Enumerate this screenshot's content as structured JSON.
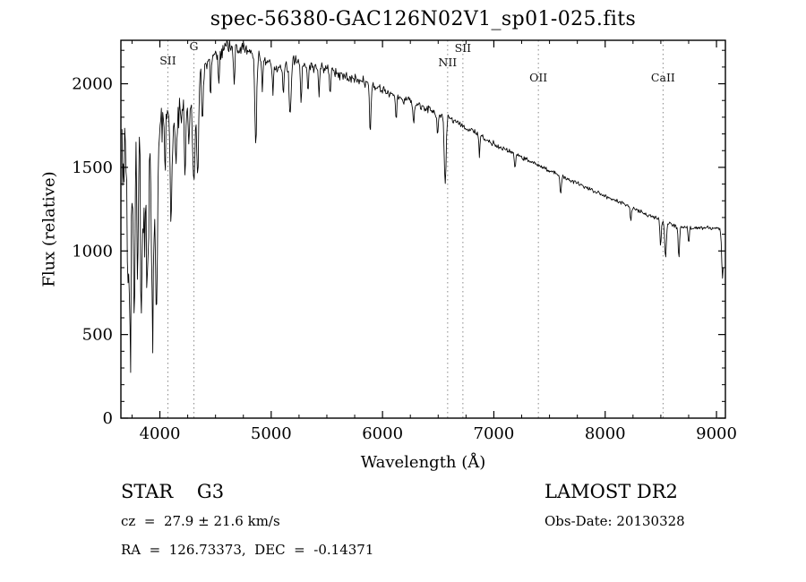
{
  "window": {
    "background": "#ffffff"
  },
  "chart_data": {
    "type": "line",
    "title": "spec-56380-GAC126N02V1_sp01-025.fits",
    "xlabel": "Wavelength (Å)",
    "ylabel": "Flux (relative)",
    "xlim": [
      3650,
      9080
    ],
    "ylim": [
      0,
      2260
    ],
    "x_ticks": [
      4000,
      5000,
      6000,
      7000,
      8000,
      9000
    ],
    "y_ticks": [
      0,
      500,
      1000,
      1500,
      2000
    ],
    "x_minor_step": 250,
    "y_minor_step": 100,
    "grid": false,
    "legend": "none",
    "line_color": "#000000",
    "marker_line_color": "#888888",
    "marker_lines": [
      {
        "label": "SII",
        "wavelength": 4072,
        "label_offset": 27
      },
      {
        "label": "G",
        "wavelength": 4306,
        "label_offset": 11
      },
      {
        "label": "NII",
        "wavelength": 6585,
        "label_offset": 29
      },
      {
        "label": "SII",
        "wavelength": 6722,
        "label_offset": 13
      },
      {
        "label": "OII",
        "wavelength": 7400,
        "label_offset": 46
      },
      {
        "label": "CaII",
        "wavelength": 8520,
        "label_offset": 46
      }
    ],
    "spectrum": {
      "domain": [
        3660,
        9060
      ],
      "step": 6,
      "noise_seed": 20130328,
      "continuum": [
        [
          3660,
          1450
        ],
        [
          3700,
          1500
        ],
        [
          3740,
          1380
        ],
        [
          3780,
          1520
        ],
        [
          3820,
          1460
        ],
        [
          3860,
          1560
        ],
        [
          3900,
          1500
        ],
        [
          3940,
          1460
        ],
        [
          3980,
          1620
        ],
        [
          4000,
          1700
        ],
        [
          4040,
          1780
        ],
        [
          4080,
          1800
        ],
        [
          4120,
          1760
        ],
        [
          4160,
          1820
        ],
        [
          4200,
          1850
        ],
        [
          4240,
          1880
        ],
        [
          4280,
          1900
        ],
        [
          4320,
          1950
        ],
        [
          4360,
          2060
        ],
        [
          4400,
          2100
        ],
        [
          4450,
          2150
        ],
        [
          4500,
          2180
        ],
        [
          4550,
          2200
        ],
        [
          4600,
          2220
        ],
        [
          4650,
          2230
        ],
        [
          4700,
          2220
        ],
        [
          4750,
          2230
        ],
        [
          4800,
          2200
        ],
        [
          4850,
          2150
        ],
        [
          4900,
          2160
        ],
        [
          4950,
          2140
        ],
        [
          5000,
          2130
        ],
        [
          5050,
          2100
        ],
        [
          5100,
          2090
        ],
        [
          5150,
          2110
        ],
        [
          5200,
          2140
        ],
        [
          5250,
          2130
        ],
        [
          5300,
          2120
        ],
        [
          5350,
          2110
        ],
        [
          5400,
          2100
        ],
        [
          5450,
          2090
        ],
        [
          5500,
          2080
        ],
        [
          5550,
          2070
        ],
        [
          5600,
          2060
        ],
        [
          5650,
          2050
        ],
        [
          5700,
          2040
        ],
        [
          5750,
          2030
        ],
        [
          5800,
          2020
        ],
        [
          5850,
          2010
        ],
        [
          5900,
          1990
        ],
        [
          5950,
          1975
        ],
        [
          6000,
          1960
        ],
        [
          6100,
          1930
        ],
        [
          6200,
          1905
        ],
        [
          6300,
          1880
        ],
        [
          6400,
          1850
        ],
        [
          6500,
          1820
        ],
        [
          6600,
          1790
        ],
        [
          6700,
          1760
        ],
        [
          6800,
          1720
        ],
        [
          6900,
          1680
        ],
        [
          7000,
          1640
        ],
        [
          7100,
          1605
        ],
        [
          7200,
          1575
        ],
        [
          7300,
          1545
        ],
        [
          7400,
          1515
        ],
        [
          7500,
          1480
        ],
        [
          7600,
          1450
        ],
        [
          7700,
          1420
        ],
        [
          7800,
          1390
        ],
        [
          7900,
          1360
        ],
        [
          8000,
          1330
        ],
        [
          8100,
          1300
        ],
        [
          8200,
          1270
        ],
        [
          8300,
          1240
        ],
        [
          8400,
          1210
        ],
        [
          8500,
          1180
        ],
        [
          8600,
          1155
        ],
        [
          8700,
          1140
        ],
        [
          8800,
          1135
        ],
        [
          8900,
          1140
        ],
        [
          9000,
          1135
        ],
        [
          9060,
          1120
        ]
      ],
      "noise_amplitude": [
        [
          3660,
          320
        ],
        [
          3800,
          300
        ],
        [
          3900,
          260
        ],
        [
          4000,
          170
        ],
        [
          4100,
          140
        ],
        [
          4200,
          110
        ],
        [
          4300,
          85
        ],
        [
          4400,
          70
        ],
        [
          4600,
          58
        ],
        [
          4800,
          55
        ],
        [
          5000,
          48
        ],
        [
          5200,
          45
        ],
        [
          5400,
          42
        ],
        [
          5600,
          38
        ],
        [
          5800,
          35
        ],
        [
          6000,
          32
        ],
        [
          6200,
          30
        ],
        [
          6400,
          28
        ],
        [
          6600,
          26
        ],
        [
          6800,
          24
        ],
        [
          7000,
          20
        ],
        [
          7200,
          18
        ],
        [
          7400,
          16
        ],
        [
          7600,
          15
        ],
        [
          7800,
          15
        ],
        [
          8000,
          15
        ],
        [
          8200,
          16
        ],
        [
          8400,
          18
        ],
        [
          8600,
          18
        ],
        [
          8800,
          15
        ],
        [
          9060,
          14
        ]
      ],
      "absorption_lines": [
        [
          3712,
          600,
          6
        ],
        [
          3735,
          950,
          7
        ],
        [
          3770,
          780,
          6
        ],
        [
          3798,
          650,
          6
        ],
        [
          3835,
          880,
          7
        ],
        [
          3862,
          500,
          6
        ],
        [
          3889,
          900,
          7
        ],
        [
          3934,
          1020,
          8
        ],
        [
          3969,
          1050,
          8
        ],
        [
          4045,
          350,
          5
        ],
        [
          4102,
          620,
          8
        ],
        [
          4144,
          300,
          5
        ],
        [
          4227,
          380,
          6
        ],
        [
          4260,
          250,
          5
        ],
        [
          4305,
          520,
          10
        ],
        [
          4340,
          560,
          8
        ],
        [
          4383,
          330,
          6
        ],
        [
          4455,
          220,
          5
        ],
        [
          4530,
          200,
          6
        ],
        [
          4668,
          220,
          6
        ],
        [
          4861,
          520,
          8
        ],
        [
          4920,
          200,
          5
        ],
        [
          5015,
          180,
          5
        ],
        [
          5110,
          200,
          5
        ],
        [
          5170,
          320,
          9
        ],
        [
          5270,
          230,
          6
        ],
        [
          5330,
          180,
          5
        ],
        [
          5430,
          160,
          5
        ],
        [
          5530,
          150,
          5
        ],
        [
          5890,
          280,
          7
        ],
        [
          6122,
          150,
          5
        ],
        [
          6280,
          130,
          5
        ],
        [
          6495,
          140,
          5
        ],
        [
          6563,
          420,
          8
        ],
        [
          6870,
          120,
          5
        ],
        [
          7190,
          90,
          5
        ],
        [
          7600,
          110,
          6
        ],
        [
          8230,
          90,
          5
        ],
        [
          8498,
          150,
          6
        ],
        [
          8542,
          210,
          7
        ],
        [
          8662,
          190,
          6
        ],
        [
          8750,
          90,
          5
        ],
        [
          9055,
          280,
          8
        ]
      ]
    }
  },
  "footer": {
    "left": {
      "line1": "STAR    G3",
      "line2": "cz  =  27.9 ± 21.6 km/s",
      "line3": "RA  =  126.73373,  DEC  =  -0.14371"
    },
    "right": {
      "line1": "LAMOST DR2",
      "line2": "Obs-Date: 20130328"
    }
  }
}
